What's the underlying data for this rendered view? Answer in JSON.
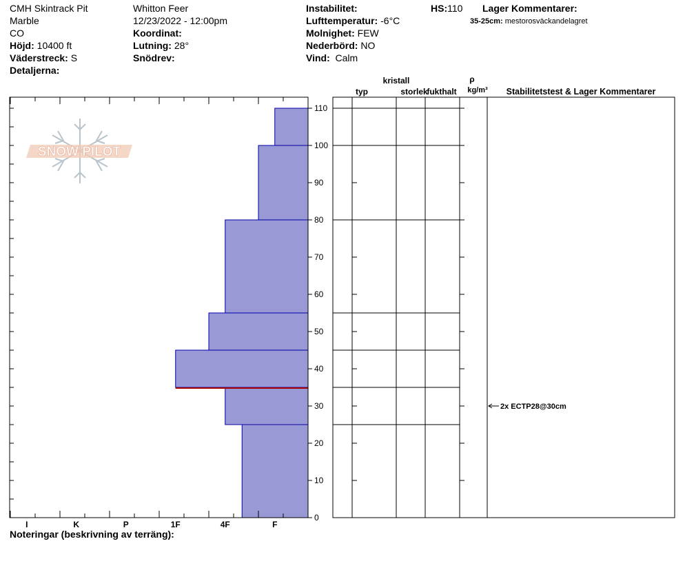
{
  "header": {
    "pit_name": "CMH Skintrack Pit",
    "location": "Marble",
    "state": "CO",
    "elevation_label": "Höjd:",
    "elevation_value": "10400 ft",
    "aspect_label": "Väderstreck:",
    "aspect_value": "S",
    "details_label": "Detaljerna:",
    "observer": "Whitton Feer",
    "datetime": "12/23/2022 - 12:00pm",
    "coordinate_label": "Koordinat:",
    "slope_label": "Lutning:",
    "slope_value": "28°",
    "drift_label": "Snödrev:",
    "instability_label": "Instabilitet:",
    "air_temp_label": "Lufttemperatur:",
    "air_temp_value": "-6°C",
    "sky_label": "Molnighet:",
    "sky_value": "FEW",
    "precip_label": "Nederbörd:",
    "precip_value": "NO",
    "wind_label": "Vind:",
    "wind_value": "Calm",
    "hs_label": "HS:",
    "hs_value": "110",
    "layer_comments_label": "Lager Kommentarer:",
    "layer_comment_range": "35-25cm:",
    "layer_comment_text": "mestorosväckandelagret"
  },
  "logo": {
    "text": "SNOW PILOT"
  },
  "columns": {
    "crystal": "kristall",
    "type": "typ",
    "size": "storlek",
    "moisture": "fukthalt",
    "rho": "ρ",
    "density_unit": "kg/m³",
    "stability_header": "Stabilitetstest & Lager Kommentarer"
  },
  "notes_label": "Noteringar (beskrivning av terräng):",
  "test_annotation": {
    "depth": 30,
    "text": "2x ECTP28@30cm"
  },
  "colors": {
    "layer_fill": "#9999d6",
    "layer_stroke": "#0000aa",
    "weak_layer_line": "#aa0000"
  },
  "chart_data": {
    "type": "bar",
    "y_axis": {
      "range": [
        0,
        110
      ],
      "ticks": [
        0,
        10,
        20,
        30,
        40,
        50,
        60,
        70,
        80,
        90,
        100,
        110
      ]
    },
    "x_axis": {
      "hardness_scale": [
        "I",
        "K",
        "P",
        "1F",
        "4F",
        "F"
      ]
    },
    "layers": [
      {
        "top": 110,
        "bottom": 100,
        "hardness": 0.67
      },
      {
        "top": 100,
        "bottom": 80,
        "hardness": 1.0
      },
      {
        "top": 80,
        "bottom": 55,
        "hardness": 1.67
      },
      {
        "top": 55,
        "bottom": 45,
        "hardness": 2.0
      },
      {
        "top": 45,
        "bottom": 35,
        "hardness": 2.67
      },
      {
        "top": 35,
        "bottom": 25,
        "hardness": 1.67
      },
      {
        "top": 25,
        "bottom": 0,
        "hardness": 1.33
      }
    ],
    "weak_layer_depth": 35
  }
}
